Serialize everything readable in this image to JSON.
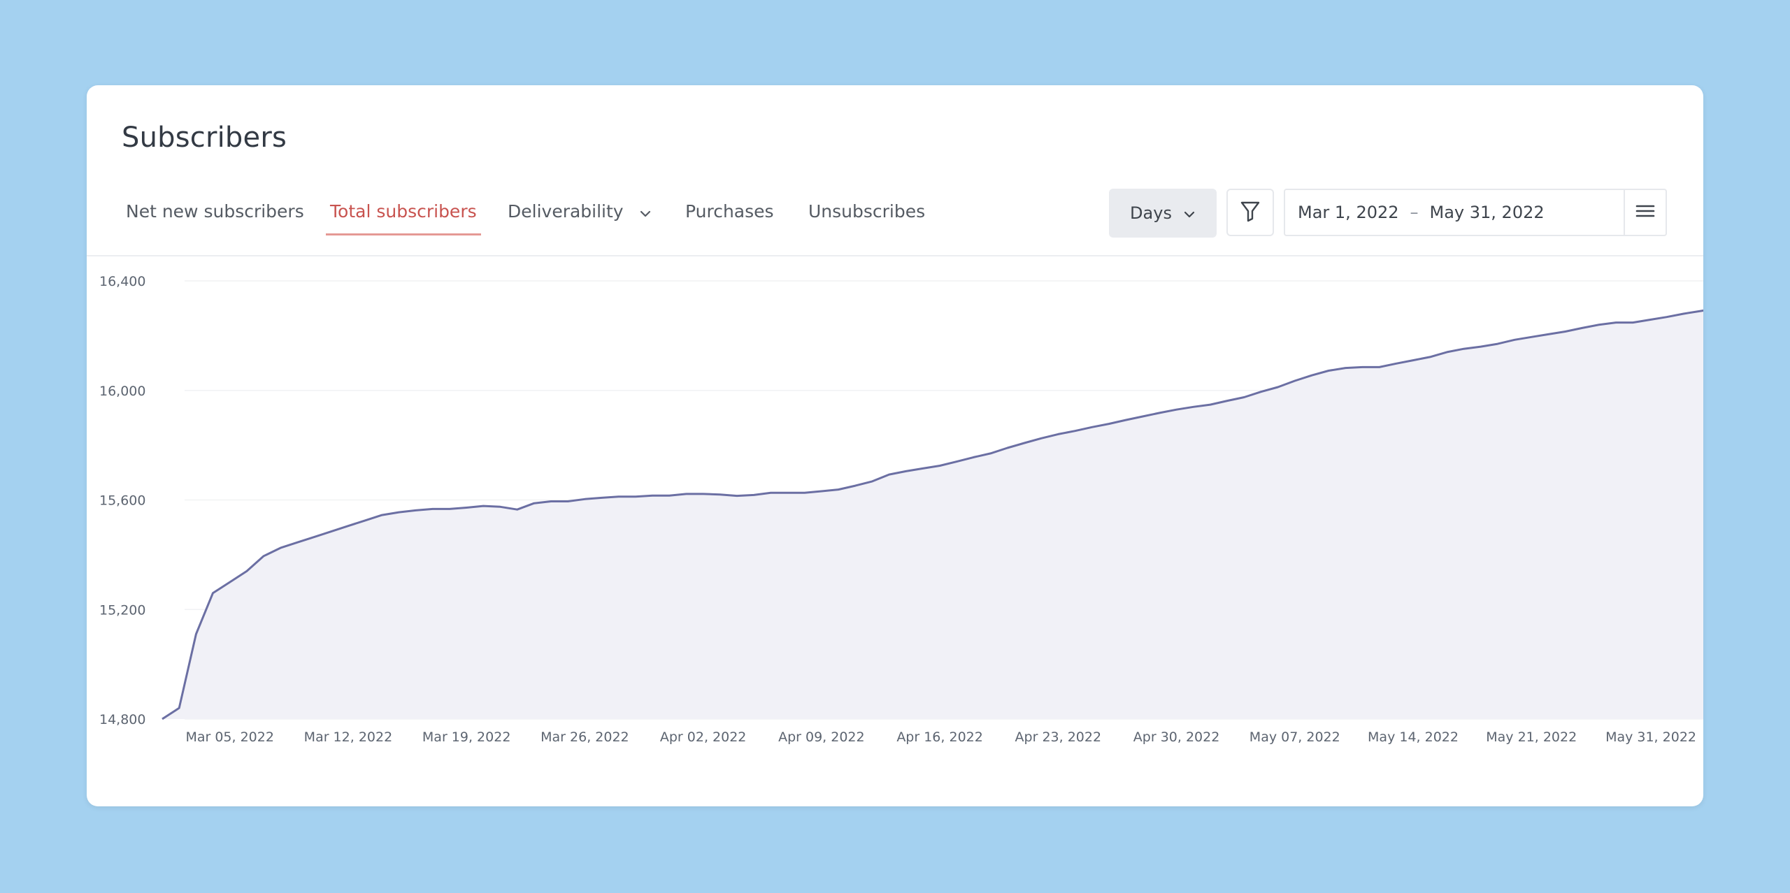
{
  "header": {
    "title": "Subscribers"
  },
  "tabs": [
    {
      "label": "Net new subscribers",
      "active": false
    },
    {
      "label": "Total subscribers",
      "active": true
    },
    {
      "label": "Deliverability",
      "active": false,
      "dropdown": true
    },
    {
      "label": "Purchases",
      "active": false
    },
    {
      "label": "Unsubscribes",
      "active": false
    }
  ],
  "controls": {
    "granularity": "Days",
    "date_start": "Mar 1, 2022",
    "date_separator": "–",
    "date_end": "May 31, 2022",
    "icons": [
      "chevron-down-icon",
      "filter-icon",
      "menu-icon"
    ]
  },
  "colors": {
    "active_tab": "#c8534f",
    "line": "#6b6fa3",
    "area": "#f1f1f7"
  },
  "chart_data": {
    "type": "area",
    "title": "",
    "xlabel": "",
    "ylabel": "",
    "ylim": [
      14800,
      16400
    ],
    "yticks": [
      14800,
      15200,
      15600,
      16000,
      16400
    ],
    "ytick_labels": [
      "14,800",
      "15,200",
      "15,600",
      "16,000",
      "16,400"
    ],
    "xtick_labels": [
      "Mar 05, 2022",
      "Mar 12, 2022",
      "Mar 19, 2022",
      "Mar 26, 2022",
      "Apr 02, 2022",
      "Apr 09, 2022",
      "Apr 16, 2022",
      "Apr 23, 2022",
      "Apr 30, 2022",
      "May 07, 2022",
      "May 14, 2022",
      "May 21, 2022",
      "May 31, 2022"
    ],
    "x_start": "2022-03-01",
    "x_end": "2022-05-31",
    "grid": true,
    "series": [
      {
        "values": [
          14800,
          14840,
          15110,
          15260,
          15300,
          15340,
          15395,
          15425,
          15445,
          15465,
          15485,
          15505,
          15525,
          15545,
          15555,
          15562,
          15567,
          15567,
          15572,
          15578,
          15575,
          15565,
          15588,
          15595,
          15595,
          15603,
          15608,
          15612,
          15612,
          15616,
          15616,
          15622,
          15622,
          15620,
          15615,
          15618,
          15626,
          15626,
          15626,
          15632,
          15638,
          15652,
          15668,
          15693,
          15705,
          15715,
          15725,
          15740,
          15756,
          15770,
          15790,
          15808,
          15825,
          15840,
          15852,
          15866,
          15878,
          15892,
          15905,
          15918,
          15930,
          15940,
          15948,
          15962,
          15975,
          15995,
          16012,
          16035,
          16055,
          16072,
          16082,
          16085,
          16085,
          16098,
          16110,
          16122,
          16140,
          16152,
          16160,
          16170,
          16185,
          16195,
          16205,
          16215,
          16228,
          16240,
          16248,
          16248,
          16258,
          16268,
          16280,
          16290,
          16300
        ]
      }
    ]
  }
}
